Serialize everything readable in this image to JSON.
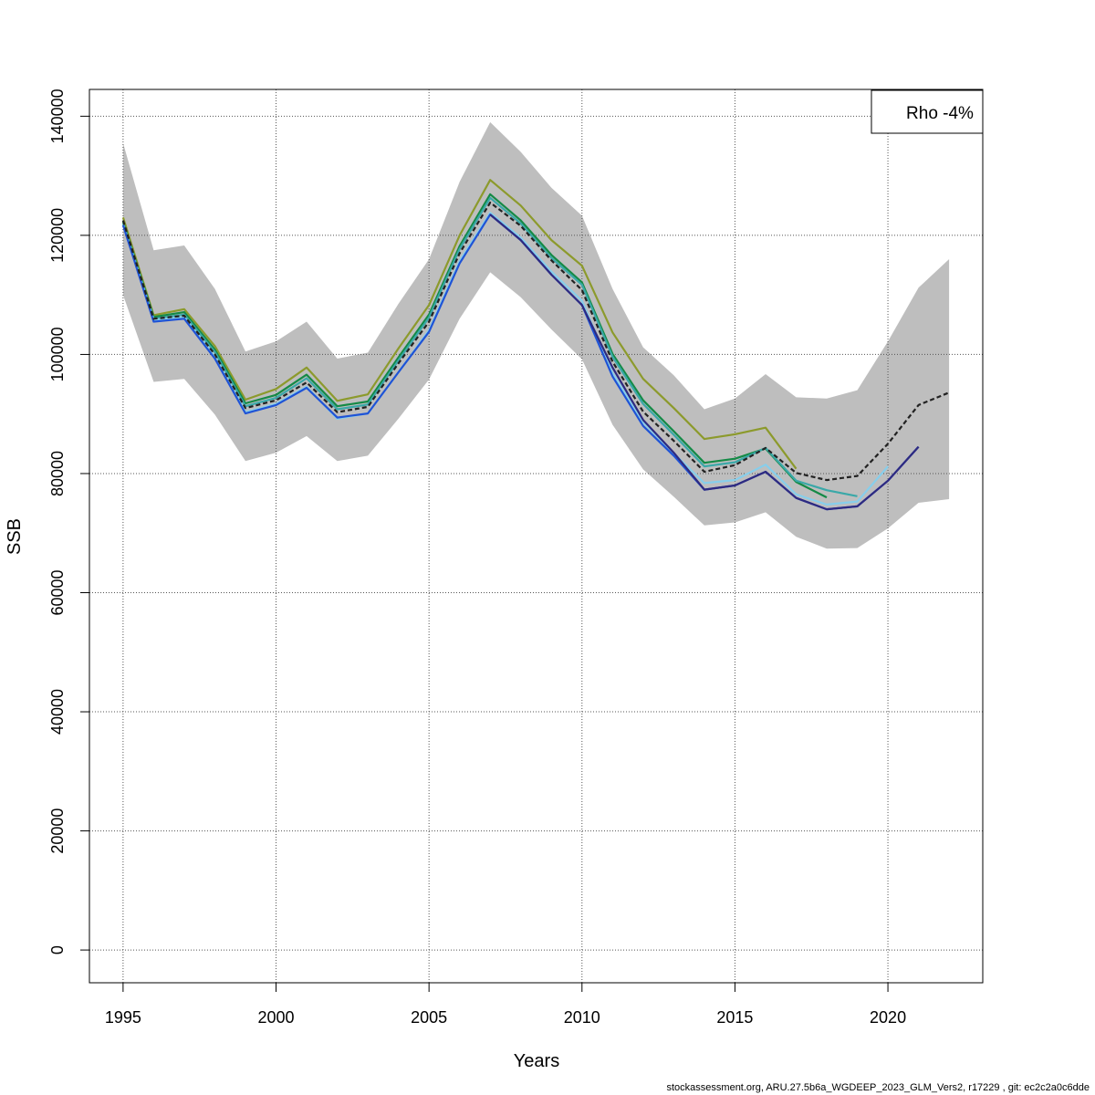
{
  "chart_data": {
    "type": "line",
    "title": "",
    "xlabel": "Years",
    "ylabel": "SSB",
    "xlim": [
      1993.9,
      2023.1
    ],
    "ylim": [
      -5500,
      144500
    ],
    "xticks": [
      1995,
      2000,
      2005,
      2010,
      2015,
      2020
    ],
    "yticks": [
      0,
      20000,
      40000,
      60000,
      80000,
      100000,
      120000,
      140000
    ],
    "grid": true,
    "legend": {
      "position": "top-right",
      "text": "Rho -4%"
    },
    "band": {
      "color": "#bebebe",
      "x": [
        1995,
        1996,
        1997,
        1998,
        1999,
        2000,
        2001,
        2002,
        2003,
        2004,
        2005,
        2006,
        2007,
        2008,
        2009,
        2010,
        2011,
        2012,
        2013,
        2014,
        2015,
        2016,
        2017,
        2018,
        2019,
        2020,
        2021,
        2022
      ],
      "upper": [
        135500,
        117500,
        118300,
        111000,
        100500,
        102200,
        105500,
        99300,
        100300,
        108500,
        116000,
        129000,
        139000,
        134000,
        128000,
        123300,
        111000,
        101200,
        96500,
        90800,
        92600,
        96700,
        92800,
        92600,
        94000,
        102200,
        111200,
        116000
      ],
      "lower": [
        110000,
        95400,
        95900,
        89900,
        82100,
        83500,
        86300,
        82100,
        83000,
        89200,
        95800,
        106000,
        113800,
        109600,
        104200,
        99200,
        88200,
        80700,
        76100,
        71300,
        71800,
        73500,
        69400,
        67400,
        67500,
        70800,
        75100,
        75700
      ]
    },
    "series": [
      {
        "color": "#222222",
        "dashed": true,
        "x": [
          1995,
          1996,
          1997,
          1998,
          1999,
          2000,
          2001,
          2002,
          2003,
          2004,
          2005,
          2006,
          2007,
          2008,
          2009,
          2010,
          2011,
          2012,
          2013,
          2014,
          2015,
          2016,
          2017,
          2018,
          2019,
          2020,
          2021,
          2022
        ],
        "values": [
          122500,
          106000,
          106500,
          100000,
          91000,
          92300,
          95300,
          90300,
          91200,
          98500,
          105500,
          117000,
          125500,
          121600,
          115800,
          110800,
          98800,
          90400,
          85500,
          80300,
          81400,
          84300,
          80100,
          78900,
          79600,
          85000,
          91500,
          93600
        ]
      },
      {
        "color": "#8c9a2c",
        "x": [
          1995,
          1996,
          1997,
          1998,
          1999,
          2000,
          2001,
          2002,
          2003,
          2004,
          2005,
          2006,
          2007,
          2008,
          2009,
          2010,
          2011,
          2012,
          2013,
          2014,
          2015,
          2016,
          2017
        ],
        "values": [
          123000,
          106600,
          107600,
          101400,
          92400,
          94200,
          97800,
          92200,
          93300,
          101000,
          108300,
          120000,
          129300,
          125000,
          119200,
          114900,
          103700,
          95900,
          91000,
          85800,
          86600,
          87700,
          80800
        ]
      },
      {
        "color": "#148a46",
        "x": [
          1995,
          1996,
          1997,
          1998,
          1999,
          2000,
          2001,
          2002,
          2003,
          2004,
          2005,
          2006,
          2007,
          2008,
          2009,
          2010,
          2011,
          2012,
          2013,
          2014,
          2015,
          2016,
          2017,
          2018
        ],
        "values": [
          122300,
          106300,
          107100,
          100800,
          91800,
          93200,
          96600,
          91300,
          92100,
          99500,
          106700,
          118200,
          126900,
          122500,
          116700,
          112100,
          100100,
          92300,
          87100,
          81800,
          82500,
          84200,
          78600,
          76000
        ]
      },
      {
        "color": "#3aa8a8",
        "x": [
          1995,
          1996,
          1997,
          1998,
          1999,
          2000,
          2001,
          2002,
          2003,
          2004,
          2005,
          2006,
          2007,
          2008,
          2009,
          2010,
          2011,
          2012,
          2013,
          2014,
          2015,
          2016,
          2017,
          2018,
          2019
        ],
        "values": [
          122000,
          106000,
          106700,
          100400,
          91300,
          92700,
          96000,
          90800,
          91600,
          99000,
          106200,
          117700,
          126300,
          122000,
          116200,
          111700,
          99600,
          91700,
          86500,
          81200,
          81900,
          84300,
          78800,
          77200,
          76200
        ]
      },
      {
        "color": "#87ceeb",
        "x": [
          1995,
          1996,
          1997,
          1998,
          1999,
          2000,
          2001,
          2002,
          2003,
          2004,
          2005,
          2006,
          2007,
          2008,
          2009,
          2010,
          2011,
          2012,
          2013,
          2014,
          2015,
          2016,
          2017,
          2018,
          2019,
          2020
        ],
        "values": [
          121800,
          105800,
          106300,
          99600,
          90300,
          91700,
          94600,
          89200,
          90100,
          97000,
          104100,
          115700,
          123800,
          119600,
          113900,
          109000,
          96900,
          88600,
          83400,
          78400,
          78900,
          81500,
          76500,
          74800,
          75300,
          81200
        ]
      },
      {
        "color": "#1f53d6",
        "x": [
          1995,
          1996,
          1997,
          1998,
          1999,
          2000,
          2001,
          2002,
          2003,
          2004,
          2005,
          2006,
          2007,
          2008,
          2009,
          2010,
          2011,
          2012,
          2013,
          2014,
          2015,
          2016,
          2017,
          2018,
          2019,
          2020,
          2021
        ],
        "values": [
          121700,
          105500,
          106000,
          99300,
          90100,
          91500,
          94400,
          89400,
          90100,
          97000,
          103800,
          115300,
          123500,
          119200,
          113400,
          108300,
          96300,
          88000,
          83000,
          77300,
          78000,
          80300,
          75900,
          74000,
          74500,
          78800,
          84500
        ]
      },
      {
        "color": "#2e2a80",
        "x": [
          2007,
          2008,
          2009,
          2010,
          2011,
          2012,
          2013,
          2014,
          2015,
          2016,
          2017,
          2018,
          2019,
          2020,
          2021
        ],
        "values": [
          123500,
          119200,
          113400,
          108300,
          97800,
          89000,
          83500,
          77300,
          78000,
          80300,
          75900,
          74000,
          74500,
          78800,
          84500
        ]
      }
    ],
    "footer": "stockassessment.org, ARU.27.5b6a_WGDEEP_2023_GLM_Vers2, r17229 , git: ec2c2a0c6dde"
  }
}
